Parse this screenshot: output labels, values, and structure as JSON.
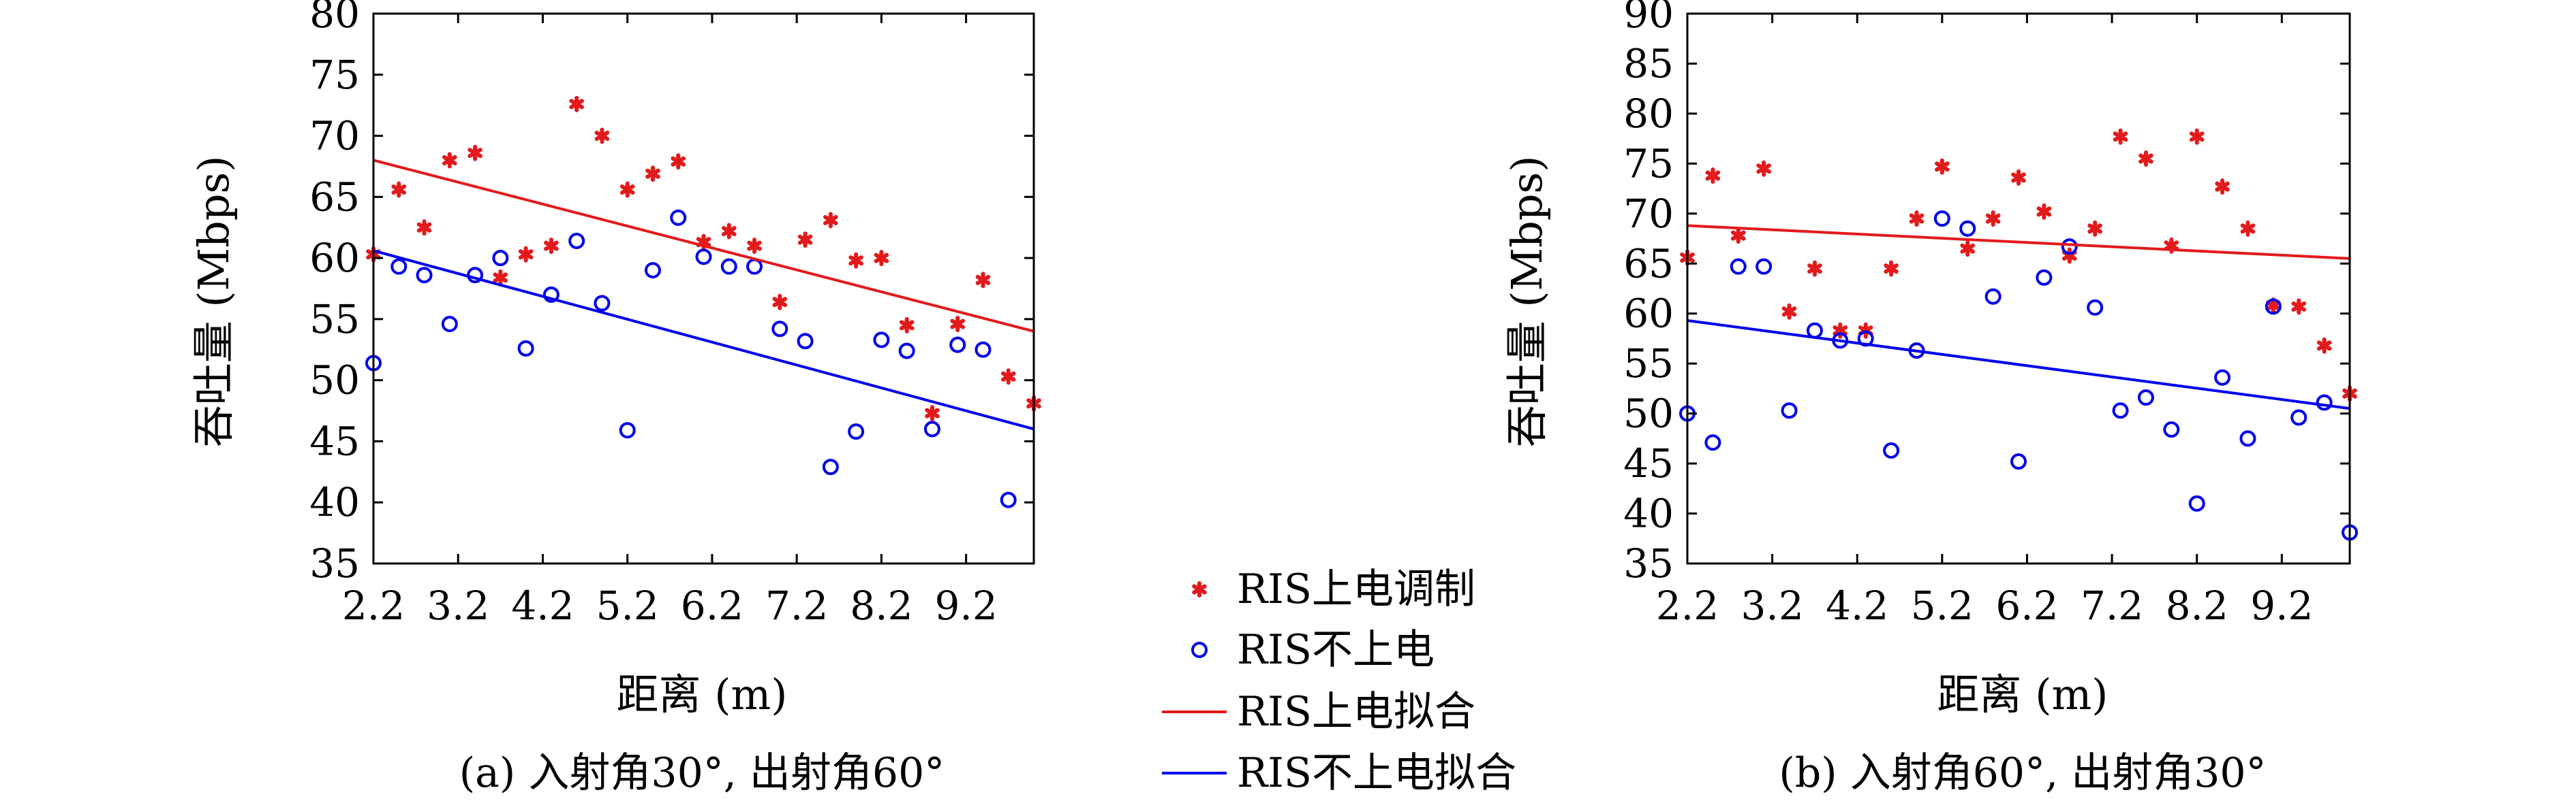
{
  "colors": {
    "powered": "#e31a1c",
    "unpowered": "#0000ee"
  },
  "legend": {
    "placement": "center-between-panels",
    "items": [
      {
        "label": "RIS上电调制",
        "marker": "star",
        "color": "#e31a1c"
      },
      {
        "label": "RIS不上电",
        "marker": "circle",
        "color": "#0000ee"
      },
      {
        "label": "RIS上电拟合",
        "marker": "line",
        "color": "#e31a1c"
      },
      {
        "label": "RIS不上电拟合",
        "marker": "line",
        "color": "#0000ee"
      }
    ]
  },
  "chart_data": [
    {
      "type": "scatter",
      "caption": "(a) 入射角30°, 出射角60°",
      "xlabel": "距离 (m)",
      "ylabel": "吞吐量 (Mbps)",
      "xlim": [
        2.2,
        10.0
      ],
      "ylim": [
        35,
        80
      ],
      "xticks": [
        "2.2",
        "3.2",
        "4.2",
        "5.2",
        "6.2",
        "7.2",
        "8.2",
        "9.2"
      ],
      "yticks": [
        "35",
        "40",
        "45",
        "50",
        "55",
        "60",
        "65",
        "70",
        "75",
        "80"
      ],
      "grid": false,
      "series": [
        {
          "name": "RIS上电调制",
          "kind": "star",
          "x": [
            2.2,
            2.5,
            2.8,
            3.1,
            3.4,
            3.7,
            4.0,
            4.3,
            4.6,
            4.9,
            5.2,
            5.5,
            5.8,
            6.1,
            6.4,
            6.7,
            7.0,
            7.3,
            7.6,
            7.9,
            8.2,
            8.5,
            8.8,
            9.1,
            9.4,
            9.7,
            10.0
          ],
          "y": [
            60.3,
            65.6,
            62.5,
            68.0,
            68.6,
            58.4,
            60.3,
            61.0,
            72.6,
            70.0,
            65.6,
            66.9,
            67.9,
            61.3,
            62.2,
            61.0,
            56.4,
            61.5,
            63.1,
            59.8,
            60.0,
            54.5,
            47.3,
            54.6,
            58.2,
            50.3,
            48.1
          ]
        },
        {
          "name": "RIS不上电",
          "kind": "circle",
          "x": [
            2.2,
            2.5,
            2.8,
            3.1,
            3.4,
            3.7,
            4.0,
            4.3,
            4.6,
            4.9,
            5.2,
            5.5,
            5.8,
            6.1,
            6.4,
            6.7,
            7.0,
            7.3,
            7.6,
            7.9,
            8.2,
            8.5,
            8.8,
            9.1,
            9.4,
            9.7
          ],
          "y": [
            51.4,
            59.3,
            58.6,
            54.6,
            58.6,
            60.0,
            52.6,
            57.0,
            61.4,
            56.3,
            45.9,
            59.0,
            63.3,
            60.1,
            59.3,
            59.3,
            54.2,
            53.2,
            42.9,
            45.8,
            53.3,
            52.4,
            46.0,
            52.9,
            52.5,
            40.2
          ]
        },
        {
          "name": "RIS上电拟合",
          "kind": "line",
          "x": [
            2.2,
            10.0
          ],
          "y": [
            68.0,
            54.0
          ]
        },
        {
          "name": "RIS不上电拟合",
          "kind": "line",
          "x": [
            2.2,
            10.0
          ],
          "y": [
            60.6,
            46.0
          ]
        }
      ]
    },
    {
      "type": "scatter",
      "caption": "(b) 入射角60°, 出射角30°",
      "xlabel": "距离 (m)",
      "ylabel": "吞吐量 (Mbps)",
      "xlim": [
        2.2,
        10.0
      ],
      "ylim": [
        35,
        90
      ],
      "xticks": [
        "2.2",
        "3.2",
        "4.2",
        "5.2",
        "6.2",
        "7.2",
        "8.2",
        "9.2"
      ],
      "yticks": [
        "35",
        "40",
        "45",
        "50",
        "55",
        "60",
        "65",
        "70",
        "75",
        "80",
        "85",
        "90"
      ],
      "grid": false,
      "series": [
        {
          "name": "RIS上电调制",
          "kind": "star",
          "x": [
            2.2,
            2.5,
            2.8,
            3.1,
            3.4,
            3.7,
            4.0,
            4.3,
            4.6,
            4.9,
            5.2,
            5.5,
            5.8,
            6.1,
            6.4,
            6.7,
            7.0,
            7.3,
            7.6,
            7.9,
            8.2,
            8.5,
            8.8,
            9.1,
            9.4,
            9.7,
            10.0
          ],
          "y": [
            65.6,
            73.8,
            67.8,
            74.5,
            60.2,
            64.5,
            58.3,
            58.3,
            64.5,
            69.5,
            74.7,
            66.5,
            69.5,
            73.6,
            70.2,
            65.8,
            68.5,
            77.7,
            75.5,
            66.8,
            77.7,
            72.7,
            68.5,
            60.8,
            60.7,
            56.8,
            52.0
          ]
        },
        {
          "name": "RIS不上电",
          "kind": "circle",
          "x": [
            2.2,
            2.5,
            2.8,
            3.1,
            3.4,
            3.7,
            4.0,
            4.3,
            4.6,
            4.9,
            5.2,
            5.5,
            5.8,
            6.1,
            6.4,
            6.7,
            7.0,
            7.3,
            7.6,
            7.9,
            8.2,
            8.5,
            8.8,
            9.1,
            9.4,
            9.7,
            10.0
          ],
          "y": [
            50.0,
            47.1,
            64.7,
            64.7,
            50.3,
            58.3,
            57.3,
            57.5,
            46.3,
            56.3,
            69.5,
            68.5,
            61.7,
            45.2,
            63.6,
            66.7,
            60.6,
            50.3,
            51.6,
            48.4,
            41.0,
            53.6,
            47.5,
            60.7,
            49.6,
            51.1,
            38.1
          ]
        },
        {
          "name": "RIS上电拟合",
          "kind": "line",
          "x": [
            2.2,
            10.0
          ],
          "y": [
            68.8,
            65.5
          ]
        },
        {
          "name": "RIS不上电拟合",
          "kind": "line",
          "x": [
            2.2,
            10.0
          ],
          "y": [
            59.3,
            50.5
          ]
        }
      ]
    }
  ]
}
